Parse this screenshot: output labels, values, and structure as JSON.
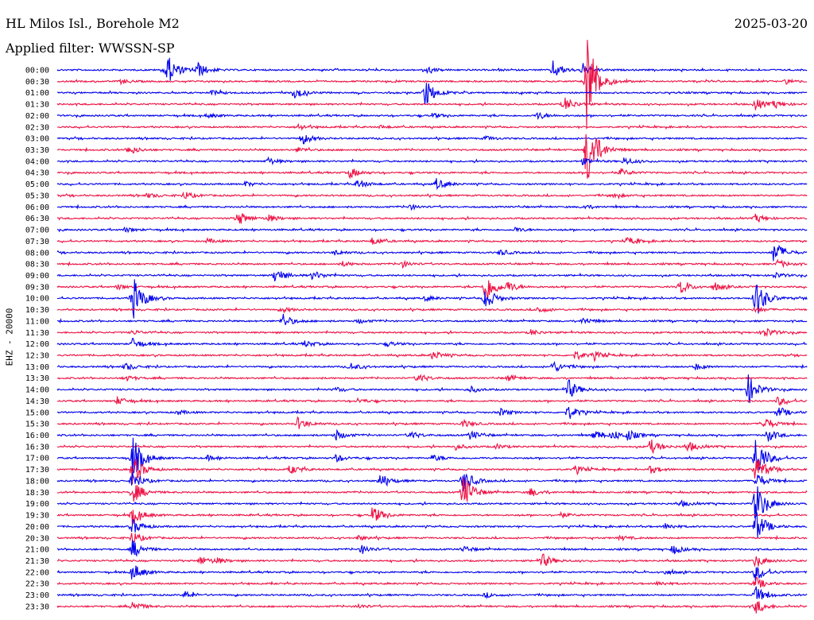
{
  "header": {
    "station": "HL Milos Isl., Borehole M2",
    "date": "2025-03-20",
    "filter": "Applied filter: WWSSN-SP"
  },
  "chart_data": {
    "type": "line",
    "channel_label": "EHZ - 20000",
    "colors": {
      "even_line": "#0000ee",
      "odd_line": "#ee1144"
    },
    "rows": [
      {
        "time": "00:00",
        "events": [
          [
            0.145,
            22
          ],
          [
            0.186,
            10
          ],
          [
            0.66,
            12
          ],
          [
            0.7,
            7
          ],
          [
            0.49,
            5
          ]
        ]
      },
      {
        "time": "00:30",
        "events": [
          [
            0.705,
            70
          ],
          [
            0.97,
            3
          ],
          [
            0.085,
            3
          ]
        ]
      },
      {
        "time": "01:00",
        "events": [
          [
            0.49,
            18
          ],
          [
            0.315,
            8
          ],
          [
            0.205,
            3
          ]
        ]
      },
      {
        "time": "01:30",
        "events": [
          [
            0.675,
            10
          ],
          [
            0.93,
            8
          ],
          [
            0.955,
            4
          ]
        ]
      },
      {
        "time": "02:00",
        "events": [
          [
            0.64,
            5
          ],
          [
            0.2,
            3
          ],
          [
            0.5,
            3
          ]
        ]
      },
      {
        "time": "02:30",
        "events": [
          [
            0.32,
            4
          ],
          [
            0.43,
            2
          ]
        ]
      },
      {
        "time": "03:00",
        "events": [
          [
            0.325,
            8
          ],
          [
            0.57,
            3
          ]
        ]
      },
      {
        "time": "03:30",
        "events": [
          [
            0.705,
            55
          ],
          [
            0.095,
            6
          ],
          [
            0.32,
            3
          ]
        ]
      },
      {
        "time": "04:00",
        "events": [
          [
            0.28,
            5
          ],
          [
            0.755,
            5
          ],
          [
            0.7,
            4
          ]
        ]
      },
      {
        "time": "04:30",
        "events": [
          [
            0.39,
            7
          ],
          [
            0.75,
            5
          ]
        ]
      },
      {
        "time": "05:00",
        "events": [
          [
            0.4,
            6
          ],
          [
            0.505,
            7
          ],
          [
            0.25,
            3
          ]
        ]
      },
      {
        "time": "05:30",
        "events": [
          [
            0.17,
            5
          ],
          [
            0.74,
            3
          ],
          [
            0.12,
            3
          ]
        ]
      },
      {
        "time": "06:00",
        "events": [
          [
            0.7,
            3
          ],
          [
            0.47,
            3
          ]
        ]
      },
      {
        "time": "06:30",
        "events": [
          [
            0.24,
            10
          ],
          [
            0.28,
            5
          ],
          [
            0.93,
            5
          ]
        ]
      },
      {
        "time": "07:00",
        "events": [
          [
            0.09,
            3
          ],
          [
            0.61,
            3
          ]
        ]
      },
      {
        "time": "07:30",
        "events": [
          [
            0.42,
            5
          ],
          [
            0.76,
            5
          ],
          [
            0.2,
            3
          ]
        ]
      },
      {
        "time": "08:00",
        "events": [
          [
            0.955,
            16
          ],
          [
            0.59,
            4
          ],
          [
            0.37,
            3
          ]
        ]
      },
      {
        "time": "08:30",
        "events": [
          [
            0.46,
            4
          ],
          [
            0.38,
            3
          ],
          [
            0.96,
            5
          ]
        ]
      },
      {
        "time": "09:00",
        "events": [
          [
            0.29,
            10
          ],
          [
            0.34,
            6
          ],
          [
            0.955,
            4
          ]
        ]
      },
      {
        "time": "09:30",
        "events": [
          [
            0.57,
            22
          ],
          [
            0.83,
            9
          ],
          [
            0.6,
            6
          ],
          [
            0.875,
            5
          ],
          [
            0.08,
            3
          ]
        ]
      },
      {
        "time": "10:00",
        "events": [
          [
            0.57,
            15
          ],
          [
            0.1,
            30
          ],
          [
            0.93,
            28
          ],
          [
            0.49,
            3
          ]
        ]
      },
      {
        "time": "10:30",
        "events": [
          [
            0.64,
            4
          ],
          [
            0.93,
            4
          ],
          [
            0.3,
            3
          ]
        ]
      },
      {
        "time": "11:00",
        "events": [
          [
            0.3,
            9
          ],
          [
            0.7,
            5
          ],
          [
            0.4,
            3
          ]
        ]
      },
      {
        "time": "11:30",
        "events": [
          [
            0.94,
            8
          ],
          [
            0.63,
            4
          ],
          [
            0.1,
            3
          ]
        ]
      },
      {
        "time": "12:00",
        "events": [
          [
            0.1,
            7
          ],
          [
            0.33,
            4
          ],
          [
            0.44,
            3
          ]
        ]
      },
      {
        "time": "12:30",
        "events": [
          [
            0.5,
            6
          ],
          [
            0.69,
            6
          ],
          [
            0.715,
            5
          ]
        ]
      },
      {
        "time": "13:00",
        "events": [
          [
            0.66,
            8
          ],
          [
            0.09,
            5
          ],
          [
            0.39,
            5
          ],
          [
            0.85,
            4
          ]
        ]
      },
      {
        "time": "13:30",
        "events": [
          [
            0.48,
            6
          ],
          [
            0.6,
            4
          ],
          [
            0.09,
            4
          ]
        ]
      },
      {
        "time": "14:00",
        "events": [
          [
            0.68,
            14
          ],
          [
            0.55,
            4
          ],
          [
            0.92,
            20
          ],
          [
            0.37,
            3
          ]
        ]
      },
      {
        "time": "14:30",
        "events": [
          [
            0.08,
            5
          ],
          [
            0.96,
            6
          ],
          [
            0.4,
            3
          ]
        ]
      },
      {
        "time": "15:00",
        "events": [
          [
            0.68,
            10
          ],
          [
            0.96,
            7
          ],
          [
            0.59,
            5
          ],
          [
            0.16,
            3
          ]
        ]
      },
      {
        "time": "15:30",
        "events": [
          [
            0.32,
            8
          ],
          [
            0.54,
            5
          ],
          [
            0.94,
            10
          ]
        ]
      },
      {
        "time": "16:00",
        "events": [
          [
            0.37,
            7
          ],
          [
            0.47,
            5
          ],
          [
            0.55,
            6
          ],
          [
            0.715,
            7
          ],
          [
            0.74,
            6
          ],
          [
            0.76,
            6
          ],
          [
            0.945,
            9
          ]
        ]
      },
      {
        "time": "16:30",
        "events": [
          [
            0.79,
            10
          ],
          [
            0.84,
            7
          ],
          [
            0.585,
            3
          ],
          [
            0.53,
            4
          ]
        ]
      },
      {
        "time": "17:00",
        "events": [
          [
            0.1,
            30
          ],
          [
            0.93,
            30
          ],
          [
            0.37,
            5
          ],
          [
            0.5,
            4
          ],
          [
            0.2,
            3
          ]
        ]
      },
      {
        "time": "17:30",
        "events": [
          [
            0.31,
            6
          ],
          [
            0.69,
            5
          ],
          [
            0.79,
            5
          ],
          [
            0.1,
            20
          ],
          [
            0.93,
            20
          ]
        ]
      },
      {
        "time": "18:00",
        "events": [
          [
            0.43,
            9
          ],
          [
            0.54,
            16
          ],
          [
            0.1,
            12
          ],
          [
            0.93,
            12
          ]
        ]
      },
      {
        "time": "18:30",
        "events": [
          [
            0.63,
            6
          ],
          [
            0.54,
            25
          ],
          [
            0.1,
            15
          ]
        ]
      },
      {
        "time": "19:00",
        "events": [
          [
            0.83,
            4
          ],
          [
            0.93,
            30
          ]
        ]
      },
      {
        "time": "19:30",
        "events": [
          [
            0.42,
            12
          ],
          [
            0.67,
            3
          ],
          [
            0.1,
            12
          ]
        ]
      },
      {
        "time": "20:00",
        "events": [
          [
            0.81,
            4
          ],
          [
            0.93,
            22
          ],
          [
            0.1,
            10
          ]
        ]
      },
      {
        "time": "20:30",
        "events": [
          [
            0.4,
            3
          ],
          [
            0.75,
            3
          ],
          [
            0.1,
            8
          ]
        ]
      },
      {
        "time": "21:00",
        "events": [
          [
            0.1,
            12
          ],
          [
            0.405,
            6
          ],
          [
            0.82,
            6
          ],
          [
            0.54,
            4
          ]
        ]
      },
      {
        "time": "21:30",
        "events": [
          [
            0.19,
            6
          ],
          [
            0.21,
            4
          ],
          [
            0.645,
            10
          ],
          [
            0.93,
            8
          ]
        ]
      },
      {
        "time": "22:00",
        "events": [
          [
            0.81,
            3
          ],
          [
            0.1,
            12
          ],
          [
            0.93,
            12
          ]
        ]
      },
      {
        "time": "22:30",
        "events": [
          [
            0.8,
            3
          ],
          [
            0.93,
            8
          ]
        ]
      },
      {
        "time": "23:00",
        "events": [
          [
            0.17,
            5
          ],
          [
            0.57,
            3
          ],
          [
            0.93,
            12
          ]
        ]
      },
      {
        "time": "23:30",
        "events": [
          [
            0.1,
            7
          ],
          [
            0.4,
            3
          ],
          [
            0.93,
            10
          ]
        ]
      }
    ]
  }
}
